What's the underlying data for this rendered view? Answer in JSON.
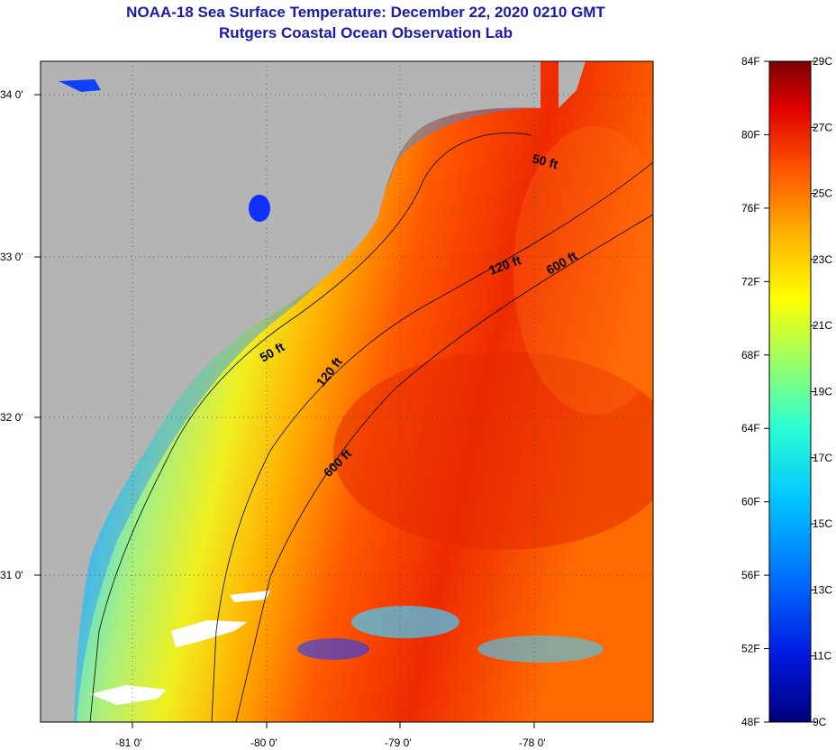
{
  "title": {
    "line1": "NOAA-18 Sea Surface Temperature:  December 22, 2020 0210 GMT",
    "line2": "Rutgers Coastal Ocean Observation Lab"
  },
  "colors": {
    "land": "#b4b4b4",
    "title_text": "#1a1aa8",
    "cloud": "#ffffff"
  },
  "map": {
    "lon_ticks": [
      "-81 0'",
      "-80 0'",
      "-79 0'",
      "-78 0'"
    ],
    "lat_ticks": [
      "34 0'",
      "33 0'",
      "32 0'",
      "31 0'"
    ],
    "contour_labels": [
      "50 ft",
      "120 ft",
      "600 ft",
      "50 ft",
      "120 ft",
      "600 ft"
    ]
  },
  "colorbar": {
    "fahrenheit": [
      "84F",
      "80F",
      "76F",
      "72F",
      "68F",
      "64F",
      "60F",
      "56F",
      "52F",
      "48F"
    ],
    "celsius": [
      "29C",
      "27C",
      "25C",
      "23C",
      "21C",
      "19C",
      "17C",
      "15C",
      "13C",
      "11C",
      "9C"
    ]
  }
}
